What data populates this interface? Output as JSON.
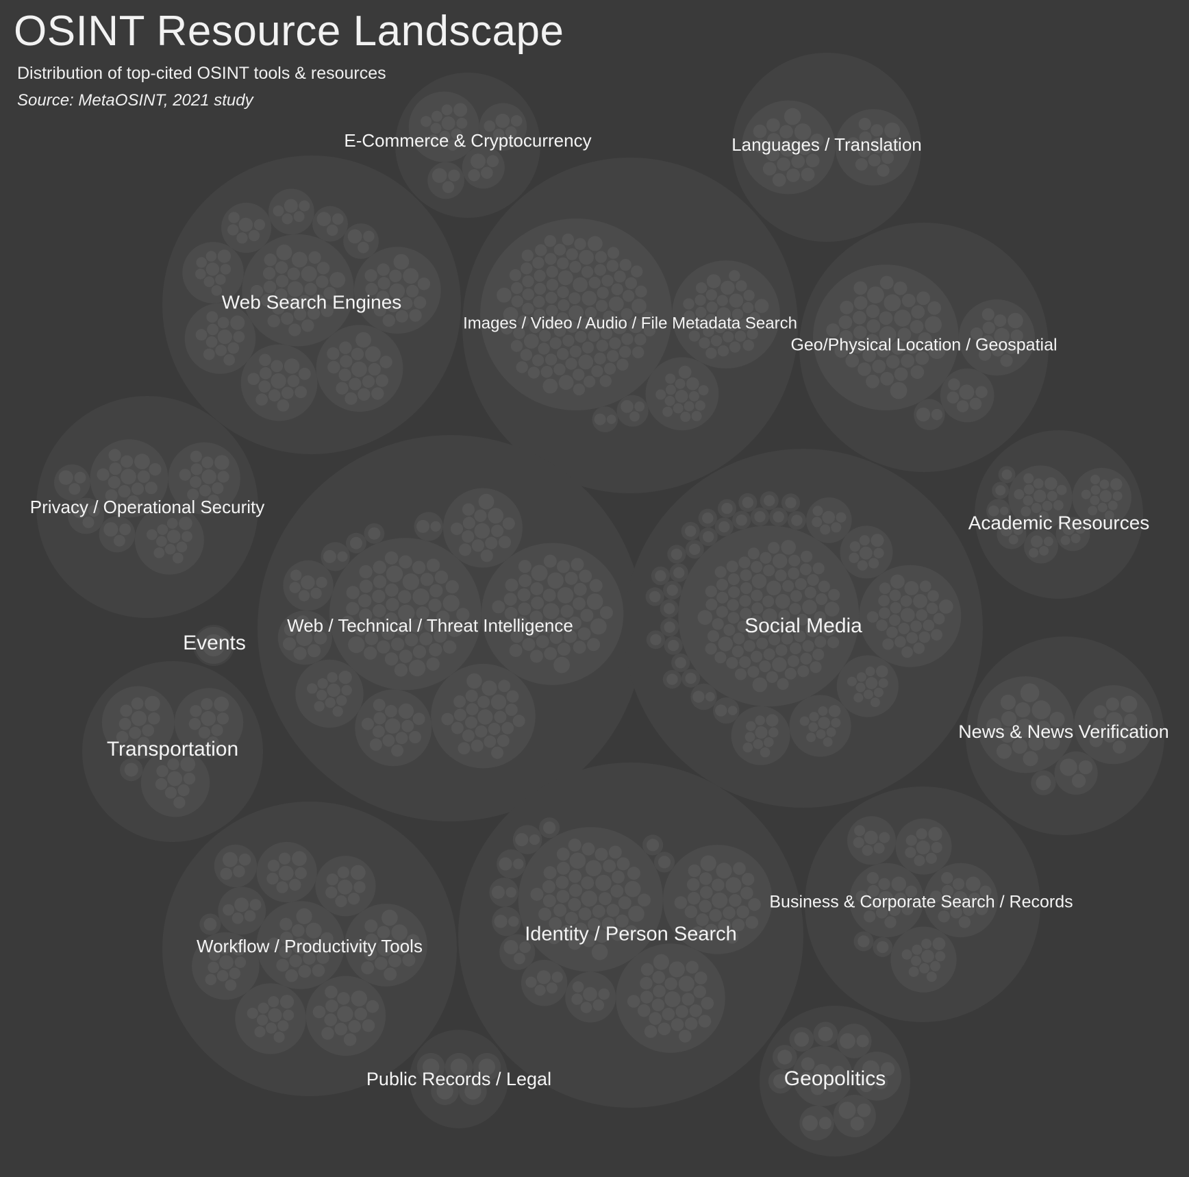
{
  "title": "OSINT Resource Landscape",
  "subtitle": "Distribution of top-cited OSINT tools & resources",
  "source": "Source: MetaOSINT, 2021 study",
  "colors": {
    "background": "#3a3a3a",
    "level1": "#424242",
    "level2": "#4b4b4b",
    "level3": "#555555",
    "text": "#f4f4f4"
  },
  "chart_data": {
    "type": "circle-packing",
    "categories": [
      {
        "name": "Web Search Engines",
        "groups": [
          18,
          9,
          14,
          3,
          5,
          30,
          12,
          3,
          6,
          18
        ]
      },
      {
        "name": "E-Commerce & Cryptocurrency",
        "groups": [
          11,
          3,
          4,
          5
        ]
      },
      {
        "name": "Images / Video / Audio / File Metadata Search",
        "groups": [
          110,
          2,
          3,
          35,
          16
        ]
      },
      {
        "name": "Languages / Translation",
        "groups": [
          18,
          12
        ]
      },
      {
        "name": "Geo/Physical Location / Geospatial",
        "groups": [
          44,
          2,
          12,
          6
        ]
      },
      {
        "name": "Academic Resources",
        "groups": [
          3,
          4,
          2,
          14,
          12,
          1,
          4,
          1
        ]
      },
      {
        "name": "Privacy / Operational Security",
        "groups": [
          3,
          3,
          3,
          14,
          12,
          11
        ]
      },
      {
        "name": "Events",
        "groups": [
          1
        ]
      },
      {
        "name": "Web / Technical / Threat Intelligence",
        "groups": [
          14,
          1,
          15,
          7,
          2,
          55,
          48,
          1,
          2,
          11,
          26,
          6
        ]
      },
      {
        "name": "Social Media",
        "groups": [
          1,
          10,
          1,
          1,
          1,
          1,
          6,
          1,
          1,
          1,
          1,
          1,
          1,
          94,
          1,
          1,
          11,
          8,
          1,
          1,
          1,
          1,
          30,
          1,
          2,
          11,
          1,
          1,
          1,
          1,
          2,
          1,
          1,
          1
        ]
      },
      {
        "name": "News & News Verification",
        "groups": [
          15,
          1,
          10,
          3
        ]
      },
      {
        "name": "Transportation",
        "groups": [
          1,
          9,
          10,
          9
        ]
      },
      {
        "name": "Workflow / Productivity Tools",
        "groups": [
          5,
          11,
          8,
          10,
          1,
          15,
          17,
          4,
          14,
          8
        ]
      },
      {
        "name": "Identity / Person Search",
        "groups": [
          1,
          5,
          2,
          6,
          3,
          1,
          49,
          28,
          1,
          2,
          2,
          28,
          2
        ]
      },
      {
        "name": "Business & Corporate Search / Records",
        "groups": [
          8,
          6,
          1,
          14,
          14,
          1,
          11
        ]
      },
      {
        "name": "Public Records / Legal",
        "groups": [
          1,
          1,
          1,
          1,
          1
        ]
      },
      {
        "name": "Geopolitics",
        "groups": [
          2,
          2,
          1,
          1,
          6,
          1,
          4,
          1,
          3
        ]
      }
    ]
  }
}
